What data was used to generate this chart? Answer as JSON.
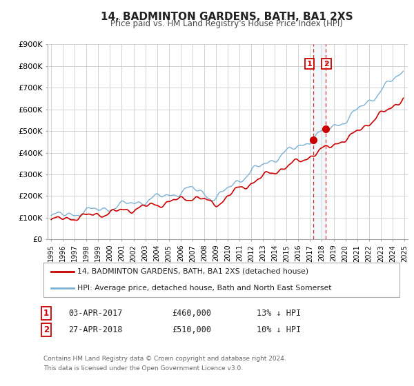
{
  "title": "14, BADMINTON GARDENS, BATH, BA1 2XS",
  "subtitle": "Price paid vs. HM Land Registry's House Price Index (HPI)",
  "legend_line1": "14, BADMINTON GARDENS, BATH, BA1 2XS (detached house)",
  "legend_line2": "HPI: Average price, detached house, Bath and North East Somerset",
  "annotation1_label": "1",
  "annotation1_date": "03-APR-2017",
  "annotation1_price": "£460,000",
  "annotation1_hpi": "13% ↓ HPI",
  "annotation2_label": "2",
  "annotation2_date": "27-APR-2018",
  "annotation2_price": "£510,000",
  "annotation2_hpi": "10% ↓ HPI",
  "footnote1": "Contains HM Land Registry data © Crown copyright and database right 2024.",
  "footnote2": "This data is licensed under the Open Government Licence v3.0.",
  "hpi_color": "#7ab0d4",
  "price_color": "#cc0000",
  "marker1_x": 2017.25,
  "marker1_y": 460000,
  "marker2_x": 2018.33,
  "marker2_y": 510000,
  "vline1_x": 2017.25,
  "vline2_x": 2018.33,
  "ylim": [
    0,
    900000
  ],
  "xlim_start": 1994.7,
  "xlim_end": 2025.3,
  "background_color": "#ffffff",
  "grid_color": "#cccccc"
}
